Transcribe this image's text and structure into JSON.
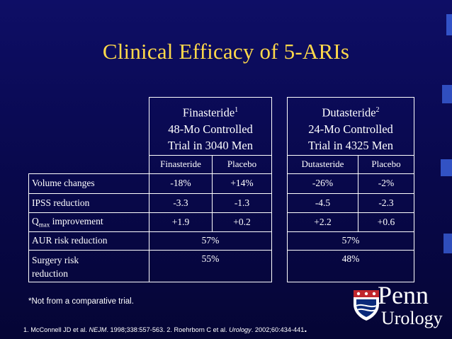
{
  "slide": {
    "title": "Clinical Efficacy of 5-ARIs",
    "footnote": "*Not from a comparative trial.",
    "references": {
      "p1": "1. McConnell JD et al. ",
      "j1": "NEJM",
      "p2": ". 1998;338:557-563. 2. Roehrborn C et al. ",
      "j2": "Urology",
      "p3": ". 2002;60:434-441",
      "dot": "."
    }
  },
  "table": {
    "finasteride": {
      "drug": "Finasteride",
      "sup": "1",
      "design_line1": "48-Mo Controlled",
      "design_line2": "Trial  in 3040 Men",
      "col_drug": "Finasteride",
      "col_placebo": "Placebo"
    },
    "dutasteride": {
      "drug": "Dutasteride",
      "sup": "2",
      "design_line1": "24-Mo Controlled",
      "design_line2": "Trial in 4325 Men",
      "col_drug": "Dutasteride",
      "col_placebo": "Placebo"
    },
    "rows": [
      {
        "label": "Volume changes",
        "f_drug": "-18%",
        "f_placebo": "+14%",
        "d_drug": "-26%",
        "d_placebo": "-2%"
      },
      {
        "label": "IPSS reduction",
        "f_drug": "-3.3",
        "f_placebo": "-1.3",
        "d_drug": "-4.5",
        "d_placebo": "-2.3"
      },
      {
        "label_main": "Q",
        "label_sub": "max",
        "label_rest": " improvement",
        "f_drug": "+1.9",
        "f_placebo": "+0.2",
        "d_drug": "+2.2",
        "d_placebo": "+0.6"
      },
      {
        "label": "AUR risk reduction",
        "f_all": "57%",
        "d_all": "57%"
      },
      {
        "label_line1": "Surgery risk",
        "label_line2": "reduction",
        "f_all": "55%",
        "d_all": "48%"
      }
    ]
  },
  "logo": {
    "name": "Penn",
    "subtitle": "Urology"
  },
  "colors": {
    "background": "#0a0a5a",
    "title": "#ffd94a",
    "text": "#ffffff"
  }
}
